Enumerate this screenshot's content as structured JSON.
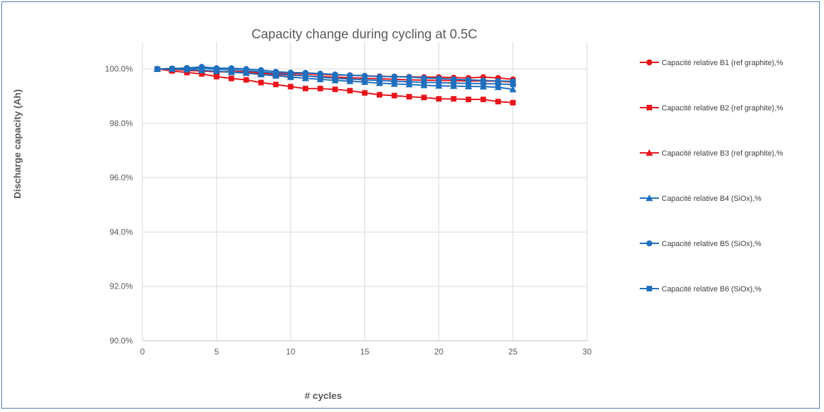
{
  "chart_data": {
    "type": "line",
    "title": "Capacity change during cycling at 0.5C",
    "xlabel": "# cycles",
    "ylabel": "Discharge capacity (Ah)",
    "xlim": [
      0,
      30
    ],
    "ylim": [
      0.9,
      1.01
    ],
    "x_ticks": [
      0,
      5,
      10,
      15,
      20,
      25,
      30
    ],
    "y_ticks": [
      0.9,
      0.92,
      0.94,
      0.96,
      0.98,
      1.0
    ],
    "x_tick_labels": [
      "0",
      "5",
      "10",
      "15",
      "20",
      "25",
      "30"
    ],
    "y_tick_labels": [
      "90.0%",
      "92.0%",
      "94.0%",
      "96.0%",
      "98.0%",
      "100.0%"
    ],
    "grid": true,
    "legend_position": "right",
    "x": [
      1,
      2,
      3,
      4,
      5,
      6,
      7,
      8,
      9,
      10,
      11,
      12,
      13,
      14,
      15,
      16,
      17,
      18,
      19,
      20,
      21,
      22,
      23,
      24,
      25
    ],
    "series": [
      {
        "name": "Capacité relative B1 (ref graphite),%",
        "color": "#e8141b",
        "marker": "circle",
        "values": [
          1.0,
          1.0,
          0.9995,
          0.9992,
          0.999,
          0.9991,
          0.9989,
          0.9988,
          0.9985,
          0.9983,
          0.9982,
          0.998,
          0.9978,
          0.9977,
          0.9975,
          0.9973,
          0.9972,
          0.9971,
          0.997,
          0.997,
          0.9968,
          0.9967,
          0.997,
          0.9967,
          0.9962
        ]
      },
      {
        "name": "Capacité relative B2 (ref graphite),%",
        "color": "#e8141b",
        "marker": "square",
        "values": [
          1.0,
          0.9993,
          0.9987,
          0.9982,
          0.9972,
          0.9965,
          0.996,
          0.995,
          0.9943,
          0.9935,
          0.9928,
          0.9928,
          0.9925,
          0.992,
          0.9912,
          0.9905,
          0.9902,
          0.9898,
          0.9895,
          0.989,
          0.989,
          0.9888,
          0.9888,
          0.988,
          0.9876
        ]
      },
      {
        "name": "Capacité relative B3 (ref graphite),%",
        "color": "#e8141b",
        "marker": "triangle",
        "values": [
          1.0,
          0.9998,
          0.9996,
          0.9993,
          0.999,
          0.9989,
          0.9986,
          0.9984,
          0.998,
          0.9977,
          0.9975,
          0.9972,
          0.997,
          0.9968,
          0.9966,
          0.9964,
          0.9962,
          0.996,
          0.9959,
          0.9958,
          0.9957,
          0.9956,
          0.9956,
          0.9955,
          0.9952
        ]
      },
      {
        "name": "Capacité relative B4 (SiOx),%",
        "color": "#1e6fbd",
        "marker": "triangle",
        "values": [
          1.0,
          1.0,
          0.9998,
          0.9995,
          0.9992,
          0.9988,
          0.9985,
          0.998,
          0.9975,
          0.997,
          0.9966,
          0.9962,
          0.9958,
          0.9955,
          0.9952,
          0.9948,
          0.9945,
          0.9943,
          0.994,
          0.9938,
          0.9937,
          0.9936,
          0.9935,
          0.9933,
          0.9925
        ]
      },
      {
        "name": "Capacité relative B5 (SiOx),%",
        "color": "#1e6fbd",
        "marker": "circle",
        "values": [
          1.0,
          1.0002,
          1.0004,
          1.0008,
          1.0003,
          1.0003,
          1.0,
          0.9996,
          0.999,
          0.9987,
          0.9986,
          0.9983,
          0.998,
          0.9977,
          0.9975,
          0.9972,
          0.9972,
          0.997,
          0.9967,
          0.9965,
          0.9962,
          0.996,
          0.9958,
          0.9956,
          0.9955
        ]
      },
      {
        "name": "Capacité relative B6 (SiOx),%",
        "color": "#1e6fbd",
        "marker": "square",
        "values": [
          1.0,
          1.0,
          1.0001,
          1.0002,
          0.9999,
          0.9997,
          0.9994,
          0.999,
          0.9984,
          0.9978,
          0.9975,
          0.997,
          0.9966,
          0.9963,
          0.996,
          0.9958,
          0.9955,
          0.9953,
          0.9951,
          0.995,
          0.9948,
          0.9947,
          0.9946,
          0.9945,
          0.9943
        ]
      }
    ]
  }
}
